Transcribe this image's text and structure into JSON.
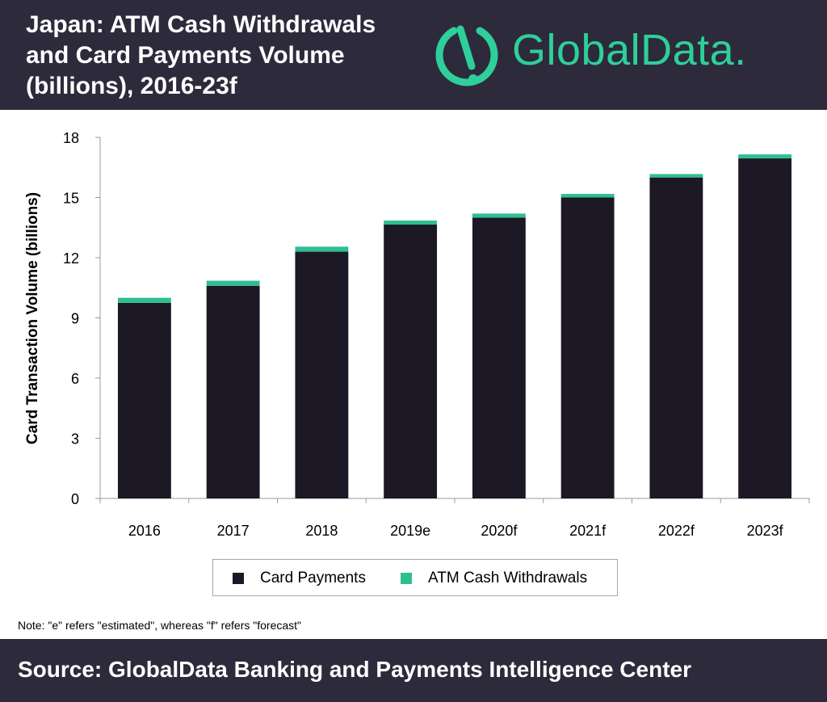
{
  "header": {
    "title_lines": [
      "Japan: ATM Cash Withdrawals",
      "and Card Payments Volume",
      "(billions), 2016-23f"
    ],
    "logo_text": "GlobalData."
  },
  "chart_data": {
    "type": "bar",
    "stacked": true,
    "title": "Japan: ATM Cash Withdrawals and Card Payments Volume (billions), 2016-23f",
    "ylabel": "Card Transaction Volume (billions)",
    "xlabel": "",
    "categories": [
      "2016",
      "2017",
      "2018",
      "2019e",
      "2020f",
      "2021f",
      "2022f",
      "2023f"
    ],
    "series": [
      {
        "name": "Card Payments",
        "color": "#1c1826",
        "values": [
          9.75,
          10.6,
          12.3,
          13.65,
          14.0,
          15.0,
          16.0,
          16.95
        ]
      },
      {
        "name": "ATM Cash Withdrawals",
        "color": "#2ebf91",
        "values": [
          0.25,
          0.25,
          0.25,
          0.2,
          0.2,
          0.18,
          0.17,
          0.2
        ]
      }
    ],
    "ylim": [
      0,
      18
    ],
    "yticks": [
      0,
      3,
      6,
      9,
      12,
      15,
      18
    ],
    "grid": false,
    "legend_position": "bottom"
  },
  "note": "Note: \"e\" refers \"estimated\", whereas \"f\" refers \"forecast\"",
  "footer": {
    "source": "Source: GlobalData Banking and Payments Intelligence Center"
  },
  "colors": {
    "header_bg": "#2d2a3b",
    "brand_green": "#2ecf9a"
  }
}
